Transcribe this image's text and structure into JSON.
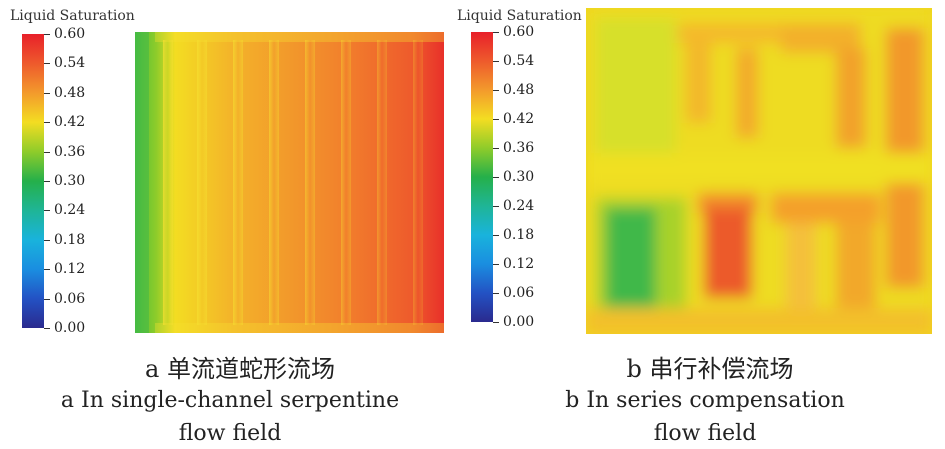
{
  "colorbar": {
    "title": "Liquid Saturation",
    "ticks": [
      "0.60",
      "0.54",
      "0.48",
      "0.42",
      "0.36",
      "0.30",
      "0.24",
      "0.18",
      "0.12",
      "0.06",
      "0.00"
    ],
    "stops": [
      {
        "value": 0.6,
        "color": "#e8202a"
      },
      {
        "value": 0.54,
        "color": "#ee5a2c"
      },
      {
        "value": 0.48,
        "color": "#f39a2c"
      },
      {
        "value": 0.42,
        "color": "#f3dd22"
      },
      {
        "value": 0.36,
        "color": "#8fcc2a"
      },
      {
        "value": 0.3,
        "color": "#25b04a"
      },
      {
        "value": 0.24,
        "color": "#1fb596"
      },
      {
        "value": 0.18,
        "color": "#19b3dc"
      },
      {
        "value": 0.12,
        "color": "#1a8ee0"
      },
      {
        "value": 0.06,
        "color": "#2352c4"
      },
      {
        "value": 0.0,
        "color": "#2a2a8e"
      }
    ]
  },
  "panel_a": {
    "caption_zh": "a  单流道蛇形流场",
    "caption_en_1": "a  In single-channel serpentine",
    "caption_en_2": "flow field"
  },
  "panel_b": {
    "caption_zh": "b  串行补偿流场",
    "caption_en_1": "b In series compensation",
    "caption_en_2": "flow field"
  }
}
